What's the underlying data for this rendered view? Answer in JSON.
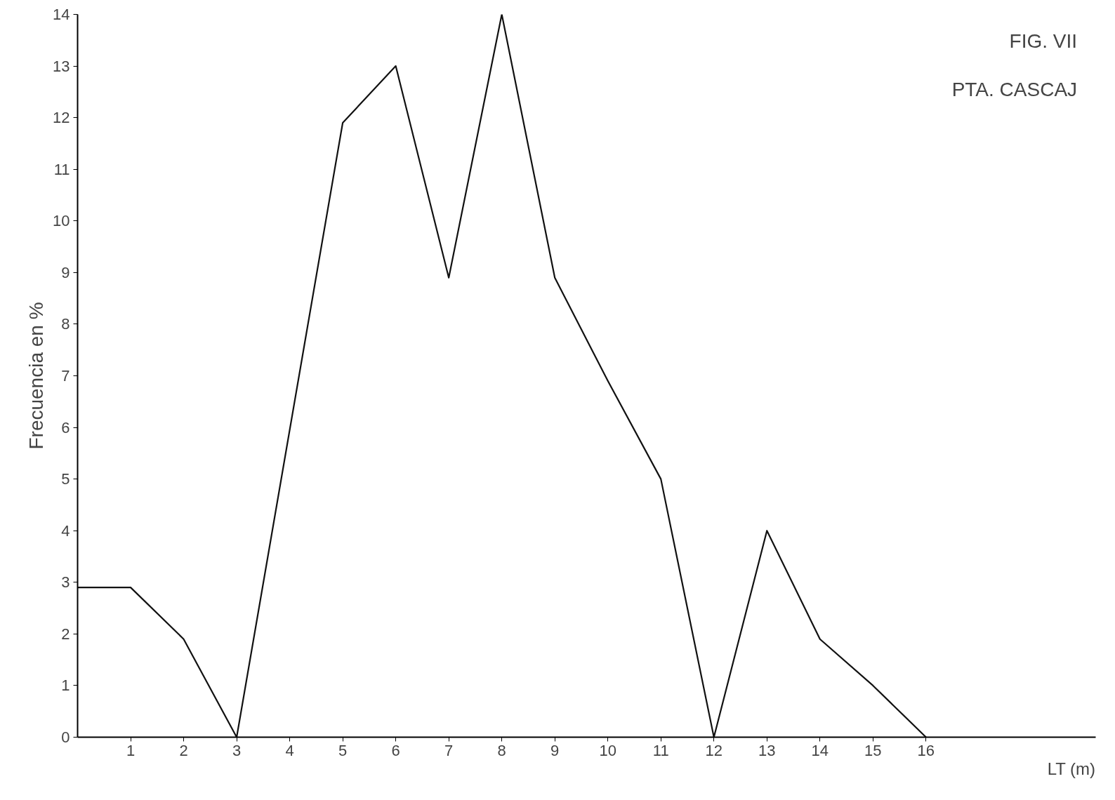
{
  "chart_data": {
    "type": "line",
    "title": "FIG. VII",
    "subtitle": "PTA. CASCAJ",
    "xlabel": "LT (m)",
    "ylabel": "Frecuencia en %",
    "x": [
      0,
      1,
      2,
      3,
      5,
      6,
      7,
      8,
      9,
      10,
      11,
      12,
      13,
      14,
      15,
      16
    ],
    "series": [
      {
        "color": "#111111",
        "values": [
          2.9,
          2.9,
          1.9,
          0,
          11.9,
          13,
          8.9,
          14,
          8.9,
          6.9,
          5,
          0,
          4,
          1.9,
          1,
          0
        ]
      }
    ],
    "xlim": [
      0,
      19.2
    ],
    "xticks": [
      1,
      2,
      3,
      4,
      5,
      6,
      7,
      8,
      9,
      10,
      11,
      12,
      13,
      14,
      15,
      16
    ],
    "ylim": [
      0,
      14
    ],
    "yticks": [
      0,
      1,
      2,
      3,
      4,
      5,
      6,
      7,
      8,
      9,
      10,
      11,
      12,
      13,
      14
    ],
    "grid": false,
    "marker": "none",
    "line_style": "solid"
  }
}
